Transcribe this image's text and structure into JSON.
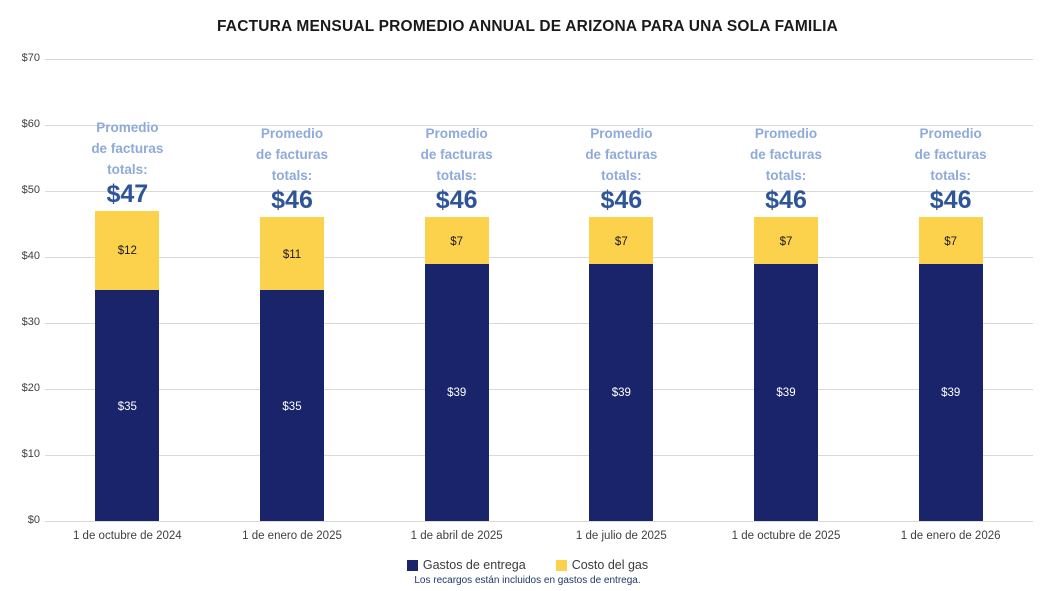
{
  "title": "FACTURA MENSUAL PROMEDIO ANNUAL DE ARIZONA PARA UNA SOLA FAMILIA",
  "chart_data": {
    "type": "bar",
    "stacked": true,
    "title": "FACTURA MENSUAL PROMEDIO ANNUAL DE ARIZONA PARA UNA SOLA FAMILIA",
    "categories": [
      "1 de octubre de 2024",
      "1 de enero de 2025",
      "1 de abril de 2025",
      "1 de julio de 2025",
      "1 de octubre de 2025",
      "1 de enero de 2026"
    ],
    "series": [
      {
        "name": "Gastos de entrega",
        "values": [
          35,
          35,
          39,
          39,
          39,
          39
        ],
        "labels": [
          "$35",
          "$35",
          "$39",
          "$39",
          "$39",
          "$39"
        ]
      },
      {
        "name": "Costo del gas",
        "values": [
          12,
          11,
          7,
          7,
          7,
          7
        ],
        "labels": [
          "$12",
          "$11",
          "$7",
          "$7",
          "$7",
          "$7"
        ]
      }
    ],
    "totals": {
      "values": [
        47,
        46,
        46,
        46,
        46,
        46
      ],
      "labels": [
        "$47",
        "$46",
        "$46",
        "$46",
        "$46",
        "$46"
      ]
    },
    "annotation_lines": [
      "Promedio",
      "de facturas",
      "totals:"
    ],
    "yticks": [
      {
        "value": 0,
        "label": "$0"
      },
      {
        "value": 10,
        "label": "$10"
      },
      {
        "value": 20,
        "label": "$20"
      },
      {
        "value": 30,
        "label": "$30"
      },
      {
        "value": 40,
        "label": "$40"
      },
      {
        "value": 50,
        "label": "$50"
      },
      {
        "value": 60,
        "label": "$60"
      },
      {
        "value": 70,
        "label": "$70"
      }
    ],
    "ylim": [
      0,
      70
    ],
    "xlabel": "",
    "ylabel": "",
    "grid": true,
    "legend_position": "bottom",
    "footnote": "Los recargos están incluidos en gastos de entrega."
  },
  "colors": {
    "delivery_bar": "#1A246B",
    "gas_bar": "#FCD24D",
    "annotation_text": "#8EAADB",
    "total_text": "#2E5597",
    "gridline": "#D9D9D9",
    "axis_text": "#404040",
    "legend_text": "#3B3B3B",
    "footnote_text": "#1F3864",
    "bar_label_on_navy": "#FFFFFF",
    "bar_label_on_yellow": "#1A1A1A"
  }
}
